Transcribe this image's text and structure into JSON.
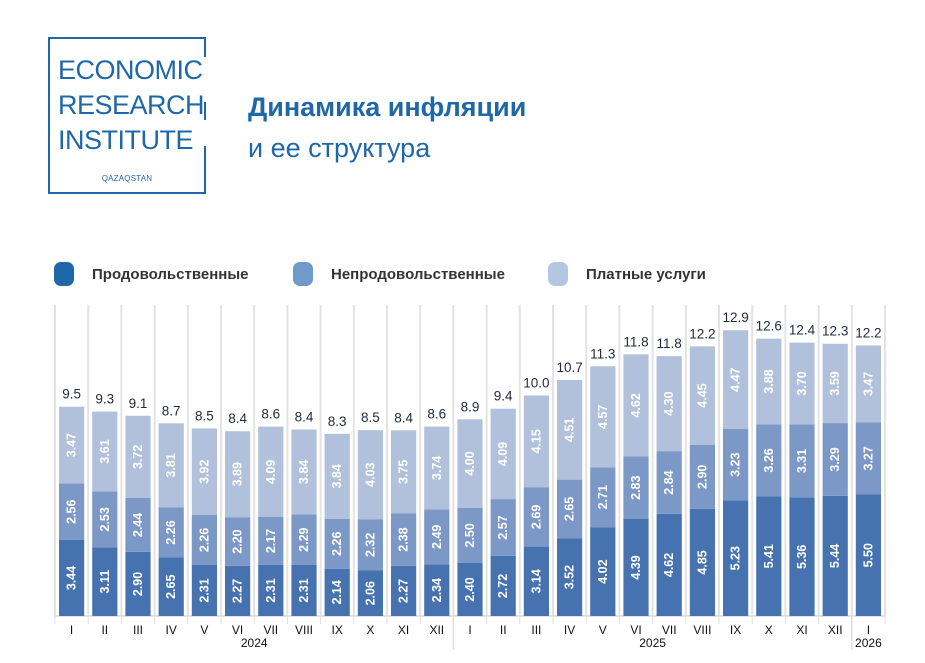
{
  "logo": {
    "lines": [
      "ECONOMIC",
      "RESEARCH",
      "INSTITUTE"
    ],
    "sub": "QAZAQSTAN"
  },
  "header": {
    "title_line1": "Динамика инфляции",
    "title_line2": "и ее структура"
  },
  "colors": {
    "brand": "#1f67a8",
    "food": "#4673b0",
    "nonfood": "#7b98c6",
    "services": "#b1c1dc",
    "grid": "#e3e3e3"
  },
  "chart_data": {
    "type": "bar",
    "stacked": true,
    "title": "Динамика инфляции и ее структура",
    "xlabel": "",
    "ylabel": "",
    "ylim": [
      0,
      14
    ],
    "grid": false,
    "legend_position": "top",
    "categories": [
      "I",
      "II",
      "III",
      "IV",
      "V",
      "VI",
      "VII",
      "VIII",
      "IX",
      "X",
      "XI",
      "XII",
      "I",
      "II",
      "III",
      "IV",
      "V",
      "VI",
      "VII",
      "VIII",
      "IX",
      "X",
      "XI",
      "XII",
      "I"
    ],
    "year_groups": [
      {
        "label": "2024",
        "start": 0,
        "end": 11
      },
      {
        "label": "2025",
        "start": 12,
        "end": 23
      },
      {
        "label": "2026",
        "start": 24,
        "end": 24
      }
    ],
    "totals": [
      9.5,
      9.3,
      9.1,
      8.7,
      8.5,
      8.4,
      8.6,
      8.4,
      8.3,
      8.5,
      8.4,
      8.6,
      8.9,
      9.4,
      10.0,
      10.7,
      11.3,
      11.8,
      11.8,
      12.2,
      12.9,
      12.6,
      12.4,
      12.3,
      12.2
    ],
    "series": [
      {
        "name": "Продовольственные",
        "color": "#4673b0",
        "values": [
          3.44,
          3.11,
          2.9,
          2.65,
          2.31,
          2.27,
          2.31,
          2.31,
          2.14,
          2.06,
          2.27,
          2.34,
          2.4,
          2.72,
          3.14,
          3.52,
          4.02,
          4.39,
          4.62,
          4.85,
          5.23,
          5.41,
          5.36,
          5.44,
          5.5
        ]
      },
      {
        "name": "Непродовольственные",
        "color": "#7b98c6",
        "values": [
          2.56,
          2.53,
          2.44,
          2.26,
          2.26,
          2.2,
          2.17,
          2.29,
          2.26,
          2.32,
          2.38,
          2.49,
          2.5,
          2.57,
          2.69,
          2.65,
          2.71,
          2.83,
          2.84,
          2.9,
          3.23,
          3.26,
          3.31,
          3.29,
          3.27
        ]
      },
      {
        "name": "Платные услуги",
        "color": "#b1c1dc",
        "values": [
          3.47,
          3.61,
          3.72,
          3.81,
          3.92,
          3.89,
          4.09,
          3.84,
          3.84,
          4.03,
          3.75,
          3.74,
          4.0,
          4.09,
          4.15,
          4.51,
          4.57,
          4.62,
          4.3,
          4.45,
          4.47,
          3.88,
          3.7,
          3.59,
          3.47
        ]
      }
    ]
  },
  "legend": {
    "items": [
      {
        "label": "Продовольственные"
      },
      {
        "label": "Непродовольственные"
      },
      {
        "label": "Платные услуги"
      }
    ]
  }
}
